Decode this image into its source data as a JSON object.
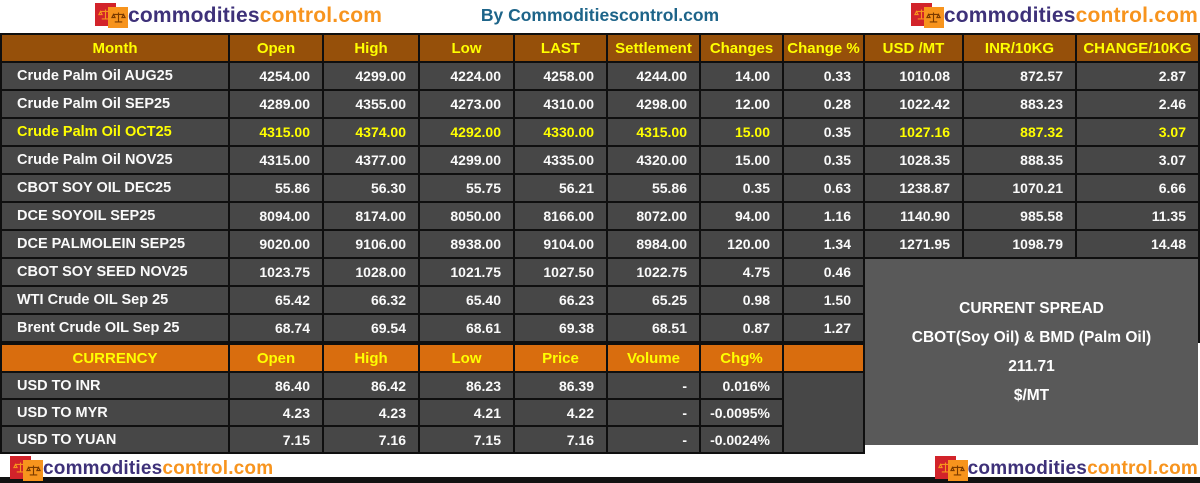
{
  "brand": {
    "name_primary": "commodities",
    "name_secondary": "control.com",
    "icon": "scales-icon"
  },
  "header": {
    "center_title": "By Commoditiescontrol.com"
  },
  "futures_table": {
    "columns": [
      "Month",
      "Open",
      "High",
      "Low",
      "LAST",
      "Settlement",
      "Changes",
      "Change %",
      "USD /MT",
      "INR/10KG",
      "CHANGE/10KG"
    ],
    "rows": [
      [
        "Crude Palm Oil AUG25",
        "4254.00",
        "4299.00",
        "4224.00",
        "4258.00",
        "4244.00",
        "14.00",
        "0.33",
        "1010.08",
        "872.57",
        "2.87"
      ],
      [
        "Crude Palm Oil SEP25",
        "4289.00",
        "4355.00",
        "4273.00",
        "4310.00",
        "4298.00",
        "12.00",
        "0.28",
        "1022.42",
        "883.23",
        "2.46"
      ],
      [
        "Crude Palm Oil OCT25",
        "4315.00",
        "4374.00",
        "4292.00",
        "4330.00",
        "4315.00",
        "15.00",
        "0.35",
        "1027.16",
        "887.32",
        "3.07"
      ],
      [
        "Crude Palm Oil NOV25",
        "4315.00",
        "4377.00",
        "4299.00",
        "4335.00",
        "4320.00",
        "15.00",
        "0.35",
        "1028.35",
        "888.35",
        "3.07"
      ],
      [
        "CBOT SOY OIL DEC25",
        "55.86",
        "56.30",
        "55.75",
        "56.21",
        "55.86",
        "0.35",
        "0.63",
        "1238.87",
        "1070.21",
        "6.66"
      ],
      [
        "DCE SOYOIL SEP25",
        "8094.00",
        "8174.00",
        "8050.00",
        "8166.00",
        "8072.00",
        "94.00",
        "1.16",
        "1140.90",
        "985.58",
        "11.35"
      ],
      [
        "DCE PALMOLEIN SEP25",
        "9020.00",
        "9106.00",
        "8938.00",
        "9104.00",
        "8984.00",
        "120.00",
        "1.34",
        "1271.95",
        "1098.79",
        "14.48"
      ],
      [
        "CBOT SOY SEED NOV25",
        "1023.75",
        "1028.00",
        "1021.75",
        "1027.50",
        "1022.75",
        "4.75",
        "0.46",
        "",
        "",
        ""
      ],
      [
        "WTI Crude OIL Sep 25",
        "65.42",
        "66.32",
        "65.40",
        "66.23",
        "65.25",
        "0.98",
        "1.50",
        "",
        "",
        ""
      ],
      [
        "Brent Crude OIL Sep 25",
        "68.74",
        "69.54",
        "68.61",
        "69.38",
        "68.51",
        "0.87",
        "1.27",
        "",
        "",
        ""
      ]
    ],
    "highlight_row": 2,
    "highlight_exempt_col": 7,
    "highlight_color": "#FFFF00"
  },
  "currency_table": {
    "columns": [
      "CURRENCY",
      "Open",
      "High",
      "Low",
      "Price",
      "Volume",
      "Chg%"
    ],
    "rows": [
      [
        "USD TO INR",
        "86.40",
        "86.42",
        "86.23",
        "86.39",
        "-",
        "0.016%"
      ],
      [
        "USD TO MYR",
        "4.23",
        "4.23",
        "4.21",
        "4.22",
        "-",
        "-0.0095%"
      ],
      [
        "USD TO YUAN",
        "7.15",
        "7.16",
        "7.15",
        "7.16",
        "-",
        "-0.0024%"
      ]
    ]
  },
  "spread_box": {
    "title": "CURRENT SPREAD",
    "subtitle": "CBOT(Soy Oil) & BMD (Palm Oil)",
    "value": "211.71",
    "unit": "$/MT"
  },
  "colors": {
    "futures_header_bg": "#96500A",
    "currency_header_bg": "#D96D0E",
    "row_bg": "#474747",
    "spread_box_bg": "#595959",
    "header_text": "#FFFF00",
    "row_text": "#FFFFFF",
    "title_text": "#1D6489",
    "brand_primary": "#3E3179",
    "brand_secondary": "#F7941E",
    "logo_red_square": "#D2232A",
    "logo_orange_square": "#F7941D"
  }
}
